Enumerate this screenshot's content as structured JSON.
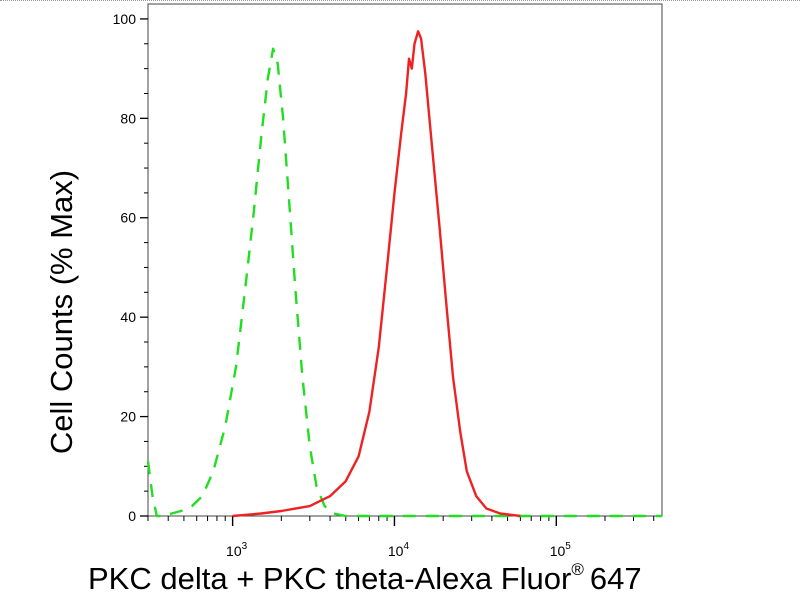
{
  "chart_data": {
    "type": "line",
    "xlabel_main": "PKC delta + PKC theta-Alexa Fluor",
    "xlabel_reg": "®",
    "xlabel_tail": "647",
    "ylabel": "Cell Counts (% Max)",
    "x_scale": "log",
    "xlim": [
      300,
      450000
    ],
    "ylim": [
      0,
      103
    ],
    "x_ticks": [
      {
        "base": "10",
        "exp": "3",
        "value": 1000
      },
      {
        "base": "10",
        "exp": "4",
        "value": 10000
      },
      {
        "base": "10",
        "exp": "5",
        "value": 100000
      }
    ],
    "y_ticks": [
      "0",
      "20",
      "40",
      "60",
      "80",
      "100"
    ],
    "grid": false,
    "series": [
      {
        "style": "dashed",
        "color": "#22dd22",
        "points": [
          [
            300,
            11
          ],
          [
            320,
            4
          ],
          [
            340,
            0
          ],
          [
            380,
            0
          ],
          [
            420,
            0.5
          ],
          [
            480,
            1
          ],
          [
            560,
            2
          ],
          [
            650,
            4
          ],
          [
            760,
            9
          ],
          [
            900,
            18
          ],
          [
            1050,
            30
          ],
          [
            1200,
            46
          ],
          [
            1350,
            61
          ],
          [
            1500,
            76
          ],
          [
            1650,
            88
          ],
          [
            1780,
            94
          ],
          [
            1900,
            91
          ],
          [
            2050,
            80
          ],
          [
            2250,
            62
          ],
          [
            2450,
            45
          ],
          [
            2700,
            28
          ],
          [
            3000,
            14
          ],
          [
            3300,
            6
          ],
          [
            3700,
            2
          ],
          [
            4200,
            0.5
          ],
          [
            5000,
            0
          ],
          [
            10000,
            0
          ],
          [
            50000,
            0
          ],
          [
            450000,
            0
          ]
        ]
      },
      {
        "style": "solid",
        "color": "#ee2222",
        "points": [
          [
            1000,
            0
          ],
          [
            1500,
            0.5
          ],
          [
            2000,
            1
          ],
          [
            3000,
            2
          ],
          [
            4000,
            4
          ],
          [
            5000,
            7
          ],
          [
            6000,
            12
          ],
          [
            7000,
            21
          ],
          [
            8000,
            34
          ],
          [
            9000,
            50
          ],
          [
            10000,
            65
          ],
          [
            11000,
            77
          ],
          [
            11800,
            85
          ],
          [
            12300,
            92
          ],
          [
            12800,
            90
          ],
          [
            13300,
            95
          ],
          [
            14000,
            97.5
          ],
          [
            14600,
            96
          ],
          [
            15500,
            89
          ],
          [
            17000,
            75
          ],
          [
            19000,
            58
          ],
          [
            21000,
            42
          ],
          [
            23000,
            28
          ],
          [
            25500,
            17
          ],
          [
            28000,
            9
          ],
          [
            32000,
            4
          ],
          [
            37000,
            1.5
          ],
          [
            45000,
            0.5
          ],
          [
            60000,
            0
          ]
        ]
      }
    ]
  }
}
